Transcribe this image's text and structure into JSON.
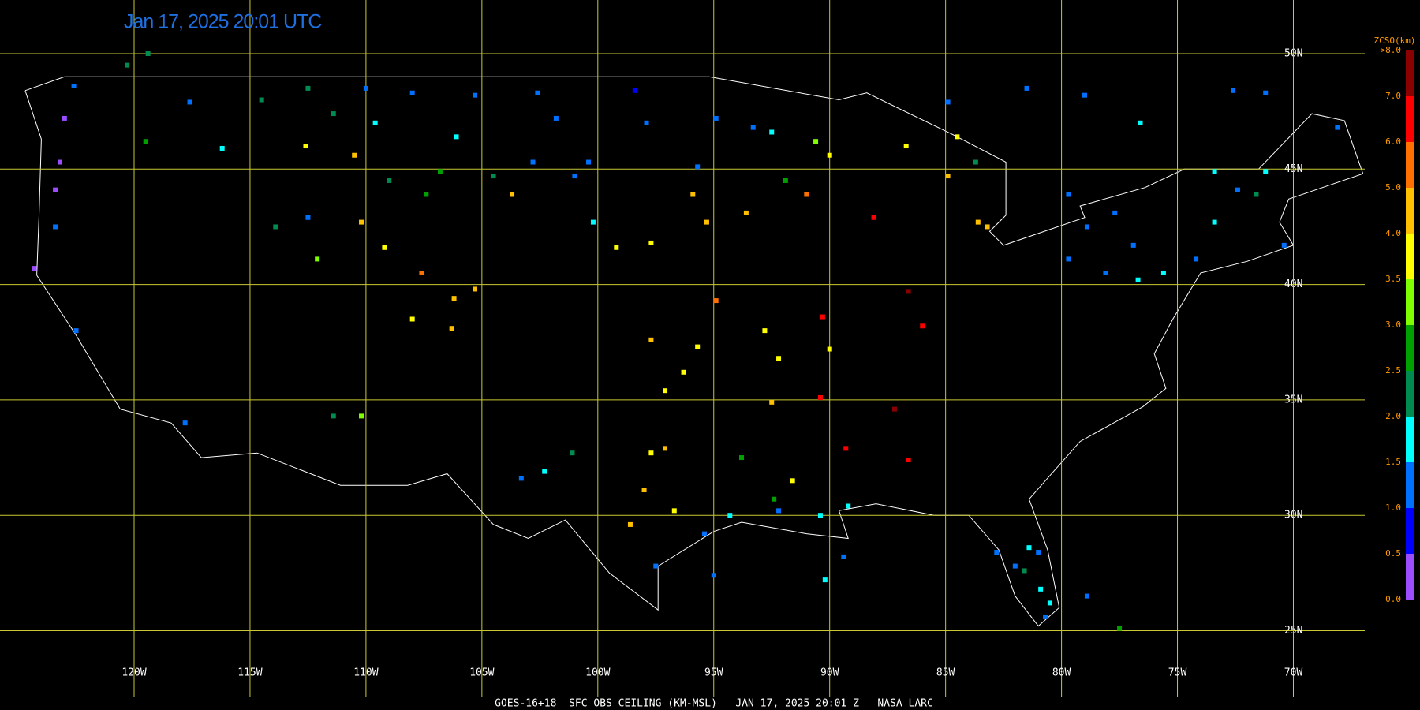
{
  "map": {
    "title": "Jan 17, 2025 20:01 UTC",
    "footer": "GOES-16+18  SFC OBS CEILING (KM-MSL)   JAN 17, 2025 20:01 Z   NASA LARC",
    "lat_ticks": [
      {
        "value": 50,
        "label": "50N"
      },
      {
        "value": 45,
        "label": "45N"
      },
      {
        "value": 40,
        "label": "40N"
      },
      {
        "value": 35,
        "label": "35N"
      },
      {
        "value": 30,
        "label": "30N"
      },
      {
        "value": 25,
        "label": "25N"
      }
    ],
    "lon_ticks": [
      {
        "value": -120,
        "label": "120W"
      },
      {
        "value": -115,
        "label": "115W"
      },
      {
        "value": -110,
        "label": "110W"
      },
      {
        "value": -105,
        "label": "105W"
      },
      {
        "value": -100,
        "label": "100W"
      },
      {
        "value": -95,
        "label": "95W"
      },
      {
        "value": -90,
        "label": "90W"
      },
      {
        "value": -85,
        "label": "85W"
      },
      {
        "value": -80,
        "label": "80W"
      },
      {
        "value": -75,
        "label": "75W"
      },
      {
        "value": -70,
        "label": "70W"
      }
    ],
    "grid_color": "#c8c832",
    "colorbar": {
      "title": "ZCSO(km)",
      "ticks": [
        {
          "value": 0,
          "label": "0.0"
        },
        {
          "value": 0.5,
          "label": "0.5"
        },
        {
          "value": 1,
          "label": "1.0"
        },
        {
          "value": 1.5,
          "label": "1.5"
        },
        {
          "value": 2,
          "label": "2.0"
        },
        {
          "value": 2.5,
          "label": "2.5"
        },
        {
          "value": 3,
          "label": "3.0"
        },
        {
          "value": 3.5,
          "label": "3.5"
        },
        {
          "value": 4,
          "label": "4.0"
        },
        {
          "value": 5,
          "label": "5.0"
        },
        {
          "value": 6,
          "label": "6.0"
        },
        {
          "value": 7,
          "label": "7.0"
        },
        {
          "value": 8,
          "label": ">8.0"
        }
      ],
      "colors": [
        "#9b4dff",
        "#0000ff",
        "#0070ff",
        "#00ffff",
        "#008c50",
        "#00a000",
        "#80ff00",
        "#ffff00",
        "#ffc000",
        "#ff7000",
        "#ff0000",
        "#8b0000"
      ]
    },
    "stations": [
      {
        "lon": -123.0,
        "lat": 47.2,
        "ceiling": 0.3
      },
      {
        "lon": -123.2,
        "lat": 45.3,
        "ceiling": 0.3
      },
      {
        "lon": -123.4,
        "lat": 44.1,
        "ceiling": 0.3
      },
      {
        "lon": -124.3,
        "lat": 40.7,
        "ceiling": 0.3
      },
      {
        "lon": -122.6,
        "lat": 48.6,
        "ceiling": 1.2
      },
      {
        "lon": -123.4,
        "lat": 42.5,
        "ceiling": 1.2
      },
      {
        "lon": -122.5,
        "lat": 38.0,
        "ceiling": 1.2
      },
      {
        "lon": -117.8,
        "lat": 34.0,
        "ceiling": 1.2
      },
      {
        "lon": -119.5,
        "lat": 46.2,
        "ceiling": 2.7
      },
      {
        "lon": -116.2,
        "lat": 45.9,
        "ceiling": 1.7
      },
      {
        "lon": -113.9,
        "lat": 42.5,
        "ceiling": 2.3
      },
      {
        "lon": -112.6,
        "lat": 46.0,
        "ceiling": 3.7
      },
      {
        "lon": -112.1,
        "lat": 41.1,
        "ceiling": 3.2
      },
      {
        "lon": -112.5,
        "lat": 42.9,
        "ceiling": 1.2
      },
      {
        "lon": -110.5,
        "lat": 45.6,
        "ceiling": 4.5
      },
      {
        "lon": -110.0,
        "lat": 48.5,
        "ceiling": 1.2
      },
      {
        "lon": -108.0,
        "lat": 48.3,
        "ceiling": 1.2
      },
      {
        "lon": -109.6,
        "lat": 47.0,
        "ceiling": 1.7
      },
      {
        "lon": -109.0,
        "lat": 44.5,
        "ceiling": 2.3
      },
      {
        "lon": -110.2,
        "lat": 42.7,
        "ceiling": 4.5
      },
      {
        "lon": -109.2,
        "lat": 41.6,
        "ceiling": 3.7
      },
      {
        "lon": -107.4,
        "lat": 43.9,
        "ceiling": 2.7
      },
      {
        "lon": -106.1,
        "lat": 46.4,
        "ceiling": 1.7
      },
      {
        "lon": -105.3,
        "lat": 48.2,
        "ceiling": 1.2
      },
      {
        "lon": -104.5,
        "lat": 44.7,
        "ceiling": 2.3
      },
      {
        "lon": -103.7,
        "lat": 43.9,
        "ceiling": 4.5
      },
      {
        "lon": -102.6,
        "lat": 48.3,
        "ceiling": 1.2
      },
      {
        "lon": -101.8,
        "lat": 47.2,
        "ceiling": 1.2
      },
      {
        "lon": -101.0,
        "lat": 44.7,
        "ceiling": 1.2
      },
      {
        "lon": -100.2,
        "lat": 42.7,
        "ceiling": 1.7
      },
      {
        "lon": -99.2,
        "lat": 41.6,
        "ceiling": 3.7
      },
      {
        "lon": -97.7,
        "lat": 41.8,
        "ceiling": 3.7
      },
      {
        "lon": -98.4,
        "lat": 48.4,
        "ceiling": 0.8
      },
      {
        "lon": -97.9,
        "lat": 47.0,
        "ceiling": 1.2
      },
      {
        "lon": -107.6,
        "lat": 40.5,
        "ceiling": 5.5
      },
      {
        "lon": -106.2,
        "lat": 39.4,
        "ceiling": 4.5
      },
      {
        "lon": -108.0,
        "lat": 38.5,
        "ceiling": 3.7
      },
      {
        "lon": -106.3,
        "lat": 38.1,
        "ceiling": 4.2
      },
      {
        "lon": -105.3,
        "lat": 39.8,
        "ceiling": 4.5
      },
      {
        "lon": -110.2,
        "lat": 34.3,
        "ceiling": 3.2
      },
      {
        "lon": -111.4,
        "lat": 34.3,
        "ceiling": 2.3
      },
      {
        "lon": -103.3,
        "lat": 31.6,
        "ceiling": 1.2
      },
      {
        "lon": -102.3,
        "lat": 31.9,
        "ceiling": 1.7
      },
      {
        "lon": -101.1,
        "lat": 32.7,
        "ceiling": 2.3
      },
      {
        "lon": -97.7,
        "lat": 37.6,
        "ceiling": 4.5
      },
      {
        "lon": -95.7,
        "lat": 37.3,
        "ceiling": 3.7
      },
      {
        "lon": -96.3,
        "lat": 36.2,
        "ceiling": 3.7
      },
      {
        "lon": -97.1,
        "lat": 35.4,
        "ceiling": 3.7
      },
      {
        "lon": -97.7,
        "lat": 32.7,
        "ceiling": 3.7
      },
      {
        "lon": -97.1,
        "lat": 32.9,
        "ceiling": 4.5
      },
      {
        "lon": -98.0,
        "lat": 31.1,
        "ceiling": 4.8
      },
      {
        "lon": -98.6,
        "lat": 29.6,
        "ceiling": 4.5
      },
      {
        "lon": -96.7,
        "lat": 30.2,
        "ceiling": 3.7
      },
      {
        "lon": -97.5,
        "lat": 27.8,
        "ceiling": 1.2
      },
      {
        "lon": -95.0,
        "lat": 27.4,
        "ceiling": 1.2
      },
      {
        "lon": -95.4,
        "lat": 29.2,
        "ceiling": 1.2
      },
      {
        "lon": -94.3,
        "lat": 30.0,
        "ceiling": 1.7
      },
      {
        "lon": -93.8,
        "lat": 32.5,
        "ceiling": 2.7
      },
      {
        "lon": -92.4,
        "lat": 30.7,
        "ceiling": 2.7
      },
      {
        "lon": -91.6,
        "lat": 31.5,
        "ceiling": 3.7
      },
      {
        "lon": -92.2,
        "lat": 30.2,
        "ceiling": 1.2
      },
      {
        "lon": -92.8,
        "lat": 38.0,
        "ceiling": 3.7
      },
      {
        "lon": -92.2,
        "lat": 36.8,
        "ceiling": 3.7
      },
      {
        "lon": -94.9,
        "lat": 39.3,
        "ceiling": 5.5
      },
      {
        "lon": -90.3,
        "lat": 38.6,
        "ceiling": 6.5
      },
      {
        "lon": -90.0,
        "lat": 37.2,
        "ceiling": 3.7
      },
      {
        "lon": -90.4,
        "lat": 35.1,
        "ceiling": 6.5
      },
      {
        "lon": -92.5,
        "lat": 34.9,
        "ceiling": 4.5
      },
      {
        "lon": -89.3,
        "lat": 32.9,
        "ceiling": 6.5
      },
      {
        "lon": -87.2,
        "lat": 34.6,
        "ceiling": 7.5
      },
      {
        "lon": -86.6,
        "lat": 32.4,
        "ceiling": 6.5
      },
      {
        "lon": -86.6,
        "lat": 39.7,
        "ceiling": 7.5
      },
      {
        "lon": -86.0,
        "lat": 38.2,
        "ceiling": 6.5
      },
      {
        "lon": -88.1,
        "lat": 42.9,
        "ceiling": 6.5
      },
      {
        "lon": -90.4,
        "lat": 30.0,
        "ceiling": 1.7
      },
      {
        "lon": -89.4,
        "lat": 28.2,
        "ceiling": 1.2
      },
      {
        "lon": -90.2,
        "lat": 27.2,
        "ceiling": 1.7
      },
      {
        "lon": -89.2,
        "lat": 30.4,
        "ceiling": 1.7
      },
      {
        "lon": -95.7,
        "lat": 45.1,
        "ceiling": 1.2
      },
      {
        "lon": -94.9,
        "lat": 47.2,
        "ceiling": 1.2
      },
      {
        "lon": -93.3,
        "lat": 46.8,
        "ceiling": 1.2
      },
      {
        "lon": -95.9,
        "lat": 43.9,
        "ceiling": 4.5
      },
      {
        "lon": -93.6,
        "lat": 43.1,
        "ceiling": 4.5
      },
      {
        "lon": -95.3,
        "lat": 42.7,
        "ceiling": 4.5
      },
      {
        "lon": -91.9,
        "lat": 44.5,
        "ceiling": 2.7
      },
      {
        "lon": -92.5,
        "lat": 46.6,
        "ceiling": 1.7
      },
      {
        "lon": -90.0,
        "lat": 45.6,
        "ceiling": 3.7
      },
      {
        "lon": -90.6,
        "lat": 46.2,
        "ceiling": 3.2
      },
      {
        "lon": -91.0,
        "lat": 43.9,
        "ceiling": 5.5
      },
      {
        "lon": -86.7,
        "lat": 46.0,
        "ceiling": 3.7
      },
      {
        "lon": -84.9,
        "lat": 44.7,
        "ceiling": 4.5
      },
      {
        "lon": -84.5,
        "lat": 46.4,
        "ceiling": 3.7
      },
      {
        "lon": -83.7,
        "lat": 45.3,
        "ceiling": 2.3
      },
      {
        "lon": -83.2,
        "lat": 42.5,
        "ceiling": 4.5
      },
      {
        "lon": -83.6,
        "lat": 42.7,
        "ceiling": 4.2
      },
      {
        "lon": -84.9,
        "lat": 47.9,
        "ceiling": 1.2
      },
      {
        "lon": -81.5,
        "lat": 48.5,
        "ceiling": 1.2
      },
      {
        "lon": -79.0,
        "lat": 48.2,
        "ceiling": 1.2
      },
      {
        "lon": -76.6,
        "lat": 47.0,
        "ceiling": 1.7
      },
      {
        "lon": -72.6,
        "lat": 48.4,
        "ceiling": 1.2
      },
      {
        "lon": -71.2,
        "lat": 48.3,
        "ceiling": 1.2
      },
      {
        "lon": -79.7,
        "lat": 43.9,
        "ceiling": 1.2
      },
      {
        "lon": -78.9,
        "lat": 42.5,
        "ceiling": 1.2
      },
      {
        "lon": -77.7,
        "lat": 43.1,
        "ceiling": 1.2
      },
      {
        "lon": -76.9,
        "lat": 41.7,
        "ceiling": 1.2
      },
      {
        "lon": -79.7,
        "lat": 41.1,
        "ceiling": 1.2
      },
      {
        "lon": -78.1,
        "lat": 40.5,
        "ceiling": 1.2
      },
      {
        "lon": -76.7,
        "lat": 40.2,
        "ceiling": 1.7
      },
      {
        "lon": -75.6,
        "lat": 40.5,
        "ceiling": 1.7
      },
      {
        "lon": -74.2,
        "lat": 41.1,
        "ceiling": 1.2
      },
      {
        "lon": -73.4,
        "lat": 42.7,
        "ceiling": 1.7
      },
      {
        "lon": -72.4,
        "lat": 44.1,
        "ceiling": 1.2
      },
      {
        "lon": -71.6,
        "lat": 43.9,
        "ceiling": 2.3
      },
      {
        "lon": -73.4,
        "lat": 44.9,
        "ceiling": 1.7
      },
      {
        "lon": -71.2,
        "lat": 44.9,
        "ceiling": 1.7
      },
      {
        "lon": -70.4,
        "lat": 41.7,
        "ceiling": 1.2
      },
      {
        "lon": -68.1,
        "lat": 46.8,
        "ceiling": 1.2
      },
      {
        "lon": -82.8,
        "lat": 28.4,
        "ceiling": 1.2
      },
      {
        "lon": -82.0,
        "lat": 27.8,
        "ceiling": 1.2
      },
      {
        "lon": -81.6,
        "lat": 27.6,
        "ceiling": 2.3
      },
      {
        "lon": -81.4,
        "lat": 28.6,
        "ceiling": 1.7
      },
      {
        "lon": -81.0,
        "lat": 28.4,
        "ceiling": 1.2
      },
      {
        "lon": -80.9,
        "lat": 26.8,
        "ceiling": 1.7
      },
      {
        "lon": -80.5,
        "lat": 26.2,
        "ceiling": 1.7
      },
      {
        "lon": -80.7,
        "lat": 25.6,
        "ceiling": 1.2
      },
      {
        "lon": -78.9,
        "lat": 26.5,
        "ceiling": 1.2
      },
      {
        "lon": -77.5,
        "lat": 25.1,
        "ceiling": 2.7
      },
      {
        "lon": -119.4,
        "lat": 50.0,
        "ceiling": 2.3
      },
      {
        "lon": -120.3,
        "lat": 49.5,
        "ceiling": 2.3
      },
      {
        "lon": -117.6,
        "lat": 47.9,
        "ceiling": 1.2
      },
      {
        "lon": -114.5,
        "lat": 48.0,
        "ceiling": 2.3
      },
      {
        "lon": -112.5,
        "lat": 48.5,
        "ceiling": 2.3
      },
      {
        "lon": -111.4,
        "lat": 47.4,
        "ceiling": 2.3
      },
      {
        "lon": -106.8,
        "lat": 44.9,
        "ceiling": 2.7
      },
      {
        "lon": -102.8,
        "lat": 45.3,
        "ceiling": 1.2
      },
      {
        "lon": -100.4,
        "lat": 45.3,
        "ceiling": 1.2
      }
    ]
  }
}
